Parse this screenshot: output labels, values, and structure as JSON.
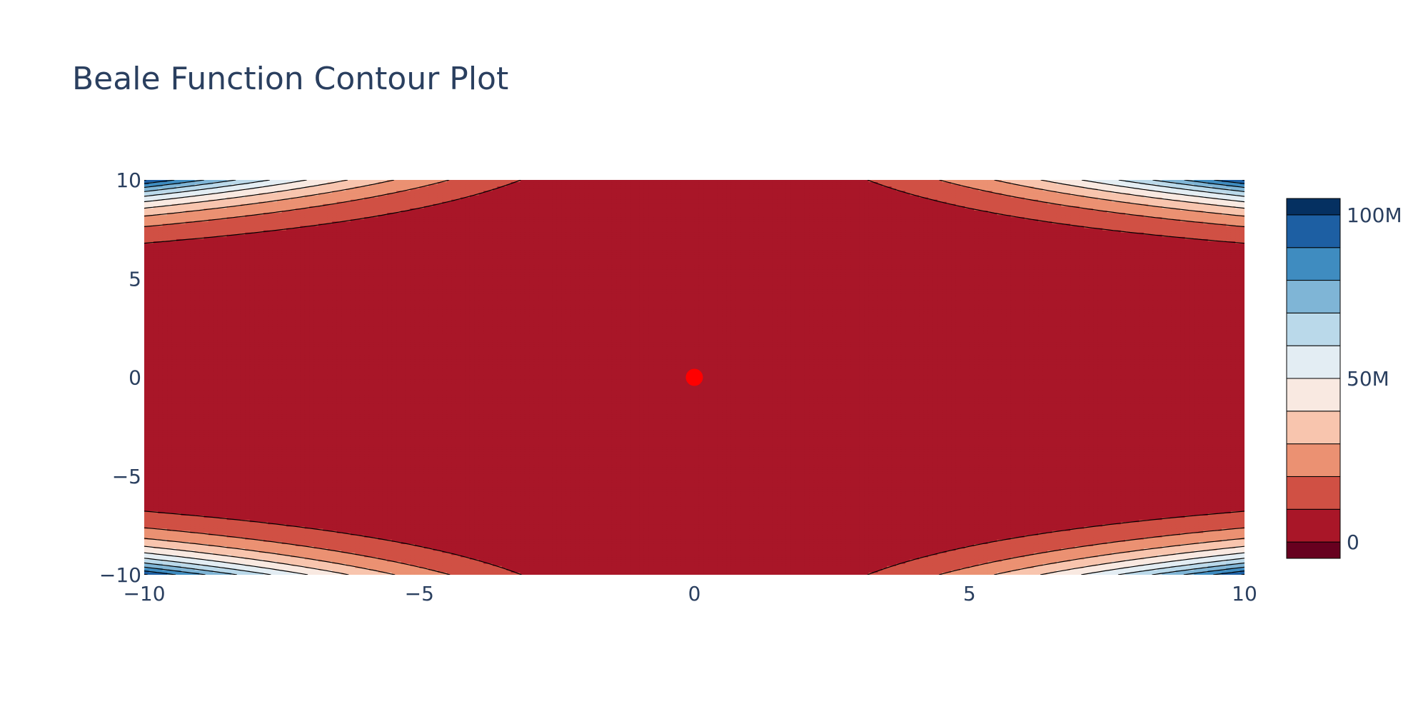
{
  "chart_data": {
    "type": "contour",
    "title": "Beale Function Contour Plot",
    "function": "beale",
    "x_range": [
      -10,
      10
    ],
    "y_range": [
      -10,
      10
    ],
    "x_ticks": [
      -10,
      -5,
      0,
      5,
      10
    ],
    "x_tick_labels": [
      "−10",
      "−5",
      "0",
      "5",
      "10"
    ],
    "y_ticks": [
      -10,
      -5,
      0,
      5,
      10
    ],
    "y_tick_labels": [
      "−10",
      "−5",
      "0",
      "5",
      "10"
    ],
    "contour_start": 0,
    "contour_size": 10000000,
    "contour_end": 110000000,
    "colorscale": [
      "#67001f",
      "#a91628",
      "#d05044",
      "#eb9172",
      "#f8c5ae",
      "#f9e9e1",
      "#e3edf3",
      "#bad9ea",
      "#7fb5d6",
      "#3f8cc0",
      "#1d5fa3",
      "#053061"
    ],
    "colorbar": {
      "range": [
        -5000000,
        105000000
      ],
      "ticks": [
        0,
        50000000,
        100000000
      ],
      "tick_labels": [
        "0",
        "50M",
        "100M"
      ]
    },
    "marker": {
      "x": 0,
      "y": 0,
      "color": "#ff0000"
    },
    "showgrid": false
  }
}
